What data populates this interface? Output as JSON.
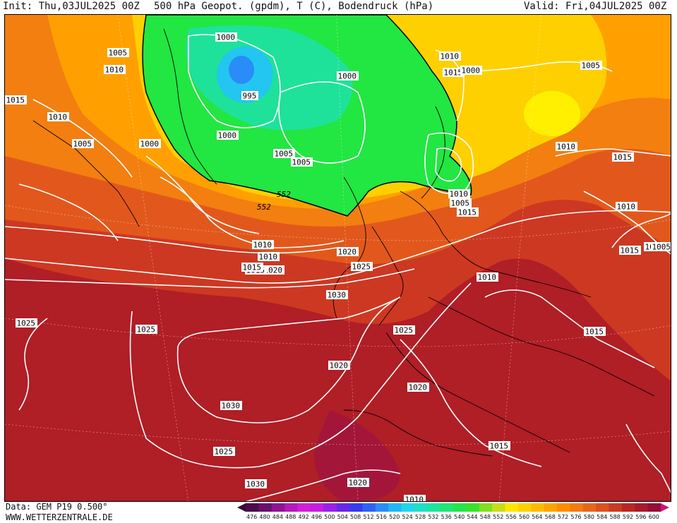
{
  "header": {
    "init": "Init: Thu,03JUL2025 00Z",
    "title": "500 hPa Geopot. (gpdm), T (C), Bodendruck (hPa)",
    "valid": "Valid: Fri,04JUL2025 00Z"
  },
  "footer": {
    "data_source": "Data: GEM P19 0.500°",
    "website": "WWW.WETTERZENTRALE.DE"
  },
  "colorbar": {
    "ticks": [
      "476",
      "480",
      "484",
      "488",
      "492",
      "496",
      "500",
      "504",
      "508",
      "512",
      "516",
      "520",
      "524",
      "528",
      "532",
      "536",
      "540",
      "544",
      "548",
      "552",
      "556",
      "560",
      "564",
      "568",
      "572",
      "576",
      "580",
      "584",
      "588",
      "592",
      "596",
      "600"
    ],
    "colors": [
      "#4b0a4b",
      "#6a0f6f",
      "#8e1493",
      "#b51ab8",
      "#d21fd8",
      "#c81de0",
      "#9a22e6",
      "#6a27ea",
      "#3a3af0",
      "#2f62f4",
      "#2a8cf6",
      "#22b6f6",
      "#1fd6ea",
      "#1ee0c4",
      "#1ee49c",
      "#1fe672",
      "#24e64a",
      "#37e42a",
      "#7ee01e",
      "#c8dc1a",
      "#ffe600",
      "#ffd000",
      "#ffba00",
      "#ffa400",
      "#ff8e00",
      "#f47a10",
      "#e8661a",
      "#dc5020",
      "#cc3a22",
      "#bb2624",
      "#a81a2a",
      "#950f36"
    ]
  },
  "map": {
    "isobar_labels": [
      "1000",
      "1005",
      "1010",
      "1015",
      "1010",
      "1005",
      "1000",
      "995",
      "1000",
      "1005",
      "1005",
      "1010",
      "1010",
      "1000",
      "1010",
      "1015",
      "1000",
      "1005",
      "1010",
      "1015",
      "1020",
      "1025",
      "1030",
      "1020",
      "1015",
      "1010",
      "1005",
      "1015",
      "1010",
      "1015",
      "1005",
      "1025",
      "1025",
      "1025",
      "1030",
      "1020",
      "1020",
      "1025",
      "1030",
      "1020",
      "1015",
      "1015",
      "1010",
      "1015",
      "1010",
      "1005"
    ],
    "height_labels": [
      "552",
      "552"
    ]
  }
}
